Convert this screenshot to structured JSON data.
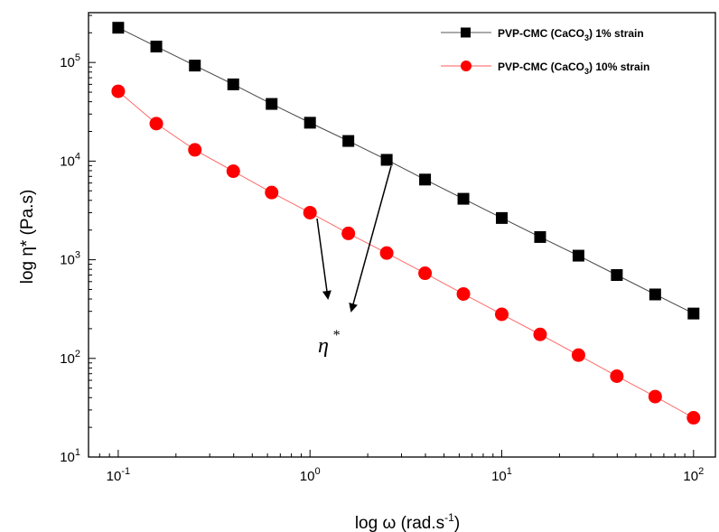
{
  "chart_data": {
    "type": "line",
    "xlabel": "log ω (rad.s",
    "xlabel_sup": "-1",
    "xlabel_end": ")",
    "ylabel": "log  η* (Pa.s)",
    "xscale": "log",
    "yscale": "log",
    "xlim": [
      0.07,
      130
    ],
    "ylim": [
      10,
      320000
    ],
    "x_ticks": [
      {
        "base": "10",
        "exp": "-1",
        "value": 0.1
      },
      {
        "base": "10",
        "exp": "0",
        "value": 1
      },
      {
        "base": "10",
        "exp": "1",
        "value": 10
      },
      {
        "base": "10",
        "exp": "2",
        "value": 100
      }
    ],
    "y_ticks": [
      {
        "base": "10",
        "exp": "1",
        "value": 10
      },
      {
        "base": "10",
        "exp": "2",
        "value": 100
      },
      {
        "base": "10",
        "exp": "3",
        "value": 1000
      },
      {
        "base": "10",
        "exp": "4",
        "value": 10000
      },
      {
        "base": "10",
        "exp": "5",
        "value": 100000
      }
    ],
    "x": [
      0.1,
      0.158,
      0.251,
      0.398,
      0.631,
      1.0,
      1.585,
      2.512,
      3.981,
      6.31,
      10.0,
      15.85,
      25.12,
      39.81,
      63.1,
      100.0
    ],
    "series": [
      {
        "name": "PVP-CMC  (CaCO",
        "name_sub": "3",
        "name_end": ")  1% strain",
        "color": "#000000",
        "marker": "square",
        "values": [
          225000,
          145000,
          93000,
          60000,
          38000,
          24500,
          16000,
          10300,
          6500,
          4150,
          2650,
          1700,
          1100,
          700,
          445,
          285
        ]
      },
      {
        "name": "PVP-CMC  (CaCO",
        "name_sub": "3",
        "name_end": ")  10% strain",
        "color": "#ff0000",
        "marker": "circle",
        "values": [
          51000,
          24000,
          13000,
          7900,
          4800,
          3000,
          1850,
          1170,
          730,
          450,
          280,
          175,
          108,
          66,
          41,
          25
        ]
      }
    ],
    "legend_position": "top-right",
    "annotation": {
      "symbol": "η",
      "sup": "*"
    },
    "grid": false
  }
}
